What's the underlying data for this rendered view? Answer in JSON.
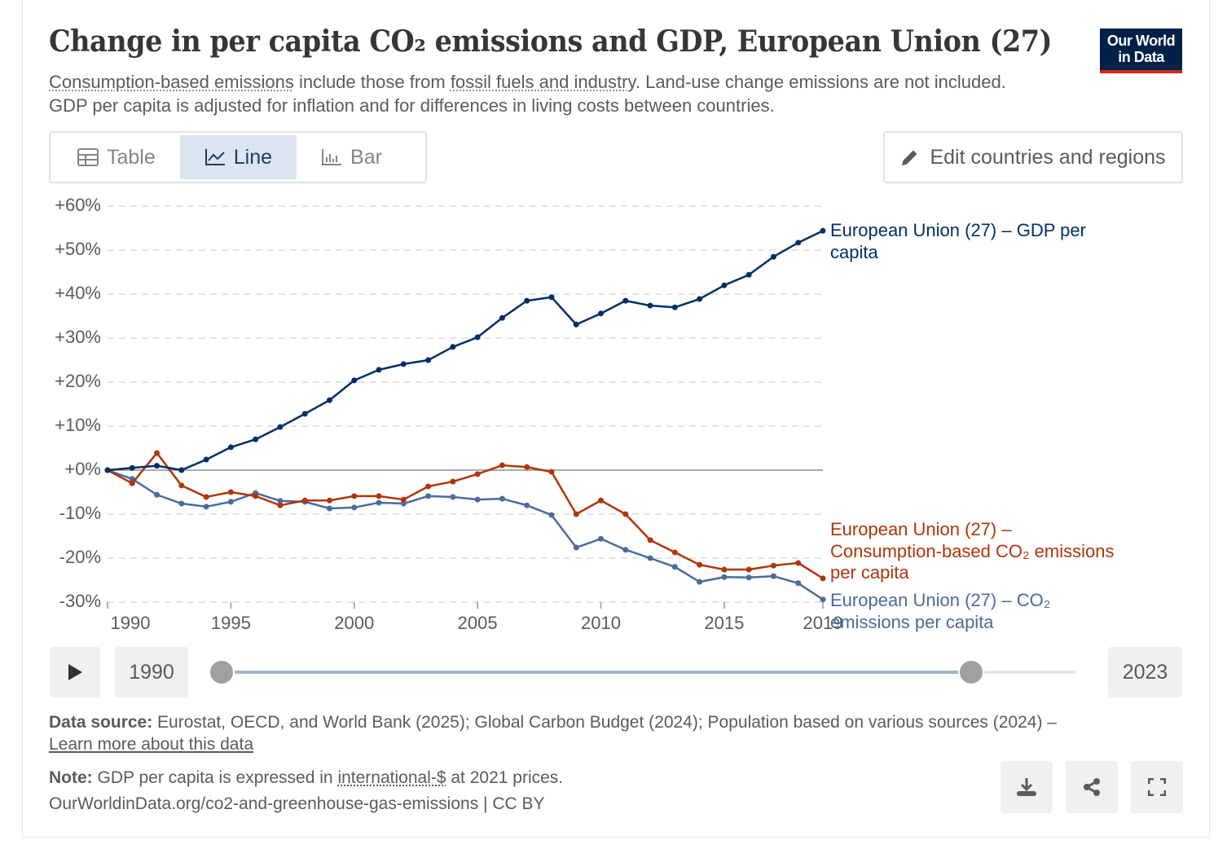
{
  "title": "Change in per capita CO₂ emissions and GDP, European Union (27)",
  "subtitle": {
    "link1": "Consumption-based emissions",
    "t1": " include those from ",
    "link2": "fossil fuels and industry",
    "t2": ". Land-use change emissions are not included. GDP per capita is adjusted for inflation and for differences in living costs between countries."
  },
  "logo": {
    "line1": "Our World",
    "line2": "in Data"
  },
  "tabs": [
    {
      "label": "Table"
    },
    {
      "label": "Line"
    },
    {
      "label": "Bar"
    }
  ],
  "edit_label": "Edit countries and regions",
  "timeline": {
    "start": "1990",
    "end": "2023",
    "start_fraction": 0,
    "end_fraction": 0.878
  },
  "footer": {
    "source_label": "Data source:",
    "source": " Eurostat, OECD, and World Bank (2025); Global Carbon Budget (2024); Population based on various sources (2024) – ",
    "learn_more": "Learn more about this data",
    "note_label": "Note:",
    "note1": " GDP per capita is expressed in ",
    "note_link": "international-$",
    "note2": " at 2021 prices.",
    "url": "OurWorldinData.org/co2-and-greenhouse-gas-emissions | CC BY"
  },
  "chart_data": {
    "type": "line",
    "title": "Change in per capita CO₂ emissions and GDP, European Union (27)",
    "xlim": [
      1990,
      2019
    ],
    "ylim": [
      -30,
      60
    ],
    "x_ticks": [
      "1990",
      "1995",
      "2000",
      "2005",
      "2010",
      "2015",
      "2019"
    ],
    "y_ticks": [
      "+60%",
      "+50%",
      "+40%",
      "+30%",
      "+20%",
      "+10%",
      "+0%",
      "-10%",
      "-20%",
      "-30%"
    ],
    "y_tick_values": [
      60,
      50,
      40,
      30,
      20,
      10,
      0,
      -10,
      -20,
      -30
    ],
    "x": [
      1990,
      1991,
      1992,
      1993,
      1994,
      1995,
      1996,
      1997,
      1998,
      1999,
      2000,
      2001,
      2002,
      2003,
      2004,
      2005,
      2006,
      2007,
      2008,
      2009,
      2010,
      2011,
      2012,
      2013,
      2014,
      2015,
      2016,
      2017,
      2018,
      2019
    ],
    "series": [
      {
        "name": "European Union (27) – GDP per capita",
        "color": "#002f66",
        "values": [
          0,
          0.5,
          1,
          0,
          2.4,
          5.2,
          7,
          9.8,
          12.8,
          15.9,
          20.4,
          22.8,
          24.1,
          25,
          28,
          30.2,
          34.6,
          38.5,
          39.3,
          33.1,
          35.6,
          38.5,
          37.4,
          37,
          38.9,
          42,
          44.4,
          48.5,
          51.7,
          54.4
        ]
      },
      {
        "name": "European Union (27) – Consumption-based CO₂ emissions per capita",
        "color": "#b13507",
        "values": [
          0,
          -3,
          3.9,
          -3.5,
          -6.1,
          -5,
          -5.9,
          -8,
          -6.9,
          -6.9,
          -5.9,
          -5.9,
          -6.7,
          -3.7,
          -2.6,
          -0.9,
          1.1,
          0.7,
          -0.4,
          -10,
          -6.9,
          -10,
          -15.9,
          -18.7,
          -21.5,
          -22.6,
          -22.6,
          -21.7,
          -21.1,
          -24.6
        ]
      },
      {
        "name": "European Union (27) – CO₂ emissions per capita",
        "color": "#4c6a9c",
        "values": [
          0,
          -2,
          -5.6,
          -7.6,
          -8.3,
          -7.2,
          -5.2,
          -7,
          -7.2,
          -8.7,
          -8.5,
          -7.4,
          -7.6,
          -5.9,
          -6.1,
          -6.7,
          -6.5,
          -8,
          -10.2,
          -17.6,
          -15.6,
          -18.1,
          -20,
          -22,
          -25.4,
          -24.3,
          -24.4,
          -24.1,
          -25.7,
          -29.4
        ]
      }
    ],
    "labels": [
      {
        "lines": [
          "European Union (27) – GDP per",
          "capita"
        ]
      },
      {
        "lines": [
          "European Union (27) –",
          "Consumption-based CO₂ emissions",
          "per capita"
        ]
      },
      {
        "lines": [
          "European Union (27) – CO₂",
          "emissions per capita"
        ]
      }
    ],
    "grid": true
  }
}
